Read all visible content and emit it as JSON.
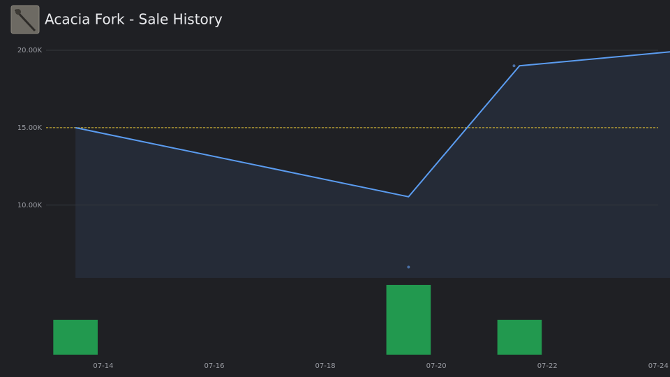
{
  "title": "Acacia Fork - Sale History",
  "chart_data": [
    {
      "type": "line",
      "x": [
        13.5,
        19.5,
        21.5,
        24.21
      ],
      "values": [
        15000,
        10540,
        19000,
        19900
      ],
      "color": "#5b9cf0",
      "area_color": "#252b37",
      "points": {
        "x": [
          21.4,
          19.5
        ],
        "values": [
          19000,
          6000
        ],
        "color": "#4a6fa5"
      },
      "reference_line": 15000,
      "reference_color": "#e0c030",
      "xlim": [
        12.97,
        24.21
      ],
      "ylim": [
        5300,
        20200
      ],
      "yticks": [
        {
          "value": 10000,
          "label": "10.00K"
        },
        {
          "value": 15000,
          "label": "15.00K"
        },
        {
          "value": 20000,
          "label": "20.00K"
        }
      ],
      "grid": true
    },
    {
      "type": "bar",
      "x": [
        13.5,
        19.5,
        21.5
      ],
      "values": [
        1,
        2,
        1
      ],
      "color": "#22994f",
      "bar_width": 0.8,
      "xlim": [
        12.97,
        24.21
      ],
      "ylim": [
        0,
        2
      ],
      "xticks": [
        {
          "value": 14,
          "label": "07-14"
        },
        {
          "value": 16,
          "label": "07-16"
        },
        {
          "value": 18,
          "label": "07-18"
        },
        {
          "value": 20,
          "label": "07-20"
        },
        {
          "value": 22,
          "label": "07-22"
        },
        {
          "value": 24,
          "label": "07-24"
        }
      ]
    }
  ]
}
